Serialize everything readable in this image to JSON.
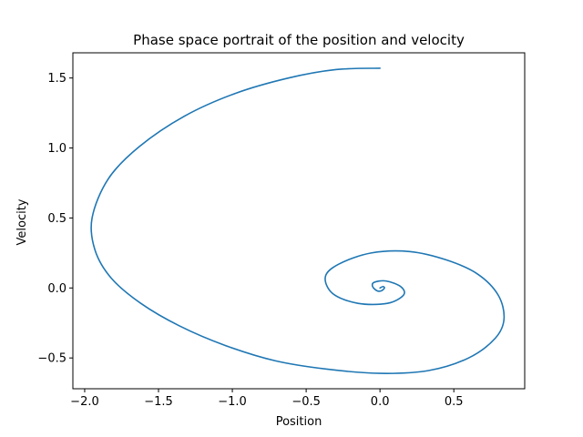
{
  "chart_data": {
    "type": "line",
    "title": "Phase space portrait of the position and velocity",
    "xlabel": "Position",
    "ylabel": "Velocity",
    "xlim": [
      -2.08,
      0.98
    ],
    "ylim": [
      -0.72,
      1.68
    ],
    "xticks": [
      -2.0,
      -1.5,
      -1.0,
      -0.5,
      0.0,
      0.5
    ],
    "xtick_labels": [
      "−2.0",
      "−1.5",
      "−1.0",
      "−0.5",
      "0.0",
      "0.5"
    ],
    "yticks": [
      -0.5,
      0.0,
      0.5,
      1.0,
      1.5
    ],
    "ytick_labels": [
      "−0.5",
      "0.0",
      "0.5",
      "1.0",
      "1.5"
    ],
    "grid": false,
    "legend": "none",
    "series": [
      {
        "color": "#1f77b4",
        "x": [
          0.0,
          -0.3,
          -0.62,
          -0.98,
          -1.32,
          -1.63,
          -1.84,
          -1.95,
          -1.93,
          -1.82,
          -1.62,
          -1.36,
          -1.05,
          -0.71,
          -0.36,
          0.0,
          0.33,
          0.6,
          0.78,
          0.84,
          0.8,
          0.66,
          0.45,
          0.2,
          -0.06,
          -0.28,
          -0.37,
          -0.32,
          -0.15,
          0.05,
          0.16,
          0.14,
          0.04,
          -0.04,
          -0.05,
          -0.02,
          0.01,
          0.03,
          0.02,
          0.0
        ],
        "y": [
          1.57,
          1.56,
          1.5,
          1.39,
          1.23,
          1.01,
          0.78,
          0.5,
          0.27,
          0.07,
          -0.11,
          -0.27,
          -0.41,
          -0.52,
          -0.58,
          -0.61,
          -0.59,
          -0.5,
          -0.36,
          -0.22,
          -0.05,
          0.1,
          0.2,
          0.26,
          0.25,
          0.17,
          0.08,
          -0.04,
          -0.11,
          -0.11,
          -0.05,
          0.01,
          0.05,
          0.04,
          0.01,
          -0.02,
          -0.02,
          0.0,
          0.01,
          0.0
        ]
      }
    ]
  }
}
